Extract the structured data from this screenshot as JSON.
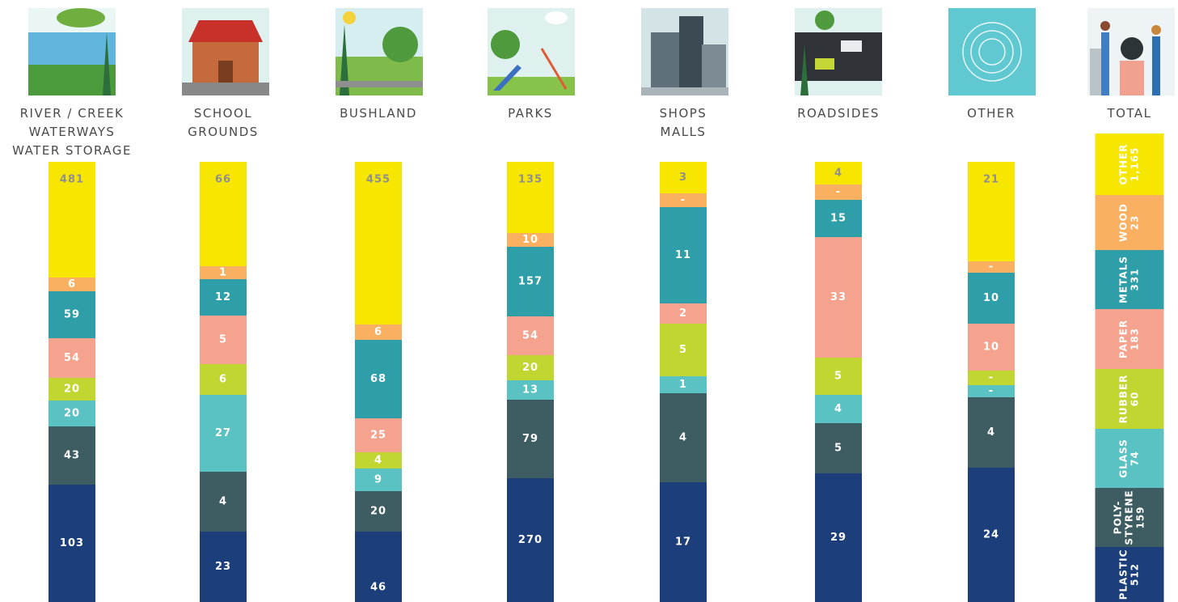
{
  "columns": [
    {
      "label": [
        "RIVER / CREEK",
        "WATERWAYS",
        "WATER STORAGE"
      ],
      "values": [
        "481",
        "6",
        "59",
        "54",
        "20",
        "20",
        "43",
        "103"
      ]
    },
    {
      "label": [
        "SCHOOL",
        "GROUNDS"
      ],
      "values": [
        "66",
        "1",
        "12",
        "5",
        "6",
        "27",
        "4",
        "23"
      ]
    },
    {
      "label": [
        "BUSHLAND"
      ],
      "values": [
        "455",
        "6",
        "68",
        "25",
        "4",
        "9",
        "20",
        "46"
      ]
    },
    {
      "label": [
        "PARKS"
      ],
      "values": [
        "135",
        "10",
        "157",
        "54",
        "20",
        "13",
        "79",
        "270"
      ]
    },
    {
      "label": [
        "SHOPS",
        "MALLS"
      ],
      "values": [
        "3",
        "-",
        "11",
        "2",
        "5",
        "1",
        "4",
        "17"
      ]
    },
    {
      "label": [
        "ROADSIDES"
      ],
      "values": [
        "4",
        "-",
        "15",
        "33",
        "5",
        "4",
        "5",
        "29"
      ]
    },
    {
      "label": [
        "OTHER"
      ],
      "values": [
        "21",
        "-",
        "10",
        "10",
        "-",
        "-",
        "4",
        "24"
      ]
    },
    {
      "label": [
        "TOTAL"
      ],
      "segments": [
        {
          "name": [
            "OTHER"
          ],
          "value": "1,165"
        },
        {
          "name": [
            "WOOD"
          ],
          "value": "23"
        },
        {
          "name": [
            "METALS"
          ],
          "value": "331"
        },
        {
          "name": [
            "PAPER"
          ],
          "value": "183"
        },
        {
          "name": [
            "RUBBER"
          ],
          "value": "60"
        },
        {
          "name": [
            "GLASS"
          ],
          "value": "74"
        },
        {
          "name": [
            "POLY-",
            "STYRENE"
          ],
          "value": "159"
        },
        {
          "name": [
            "PLASTIC"
          ],
          "value": "512"
        }
      ]
    }
  ]
}
